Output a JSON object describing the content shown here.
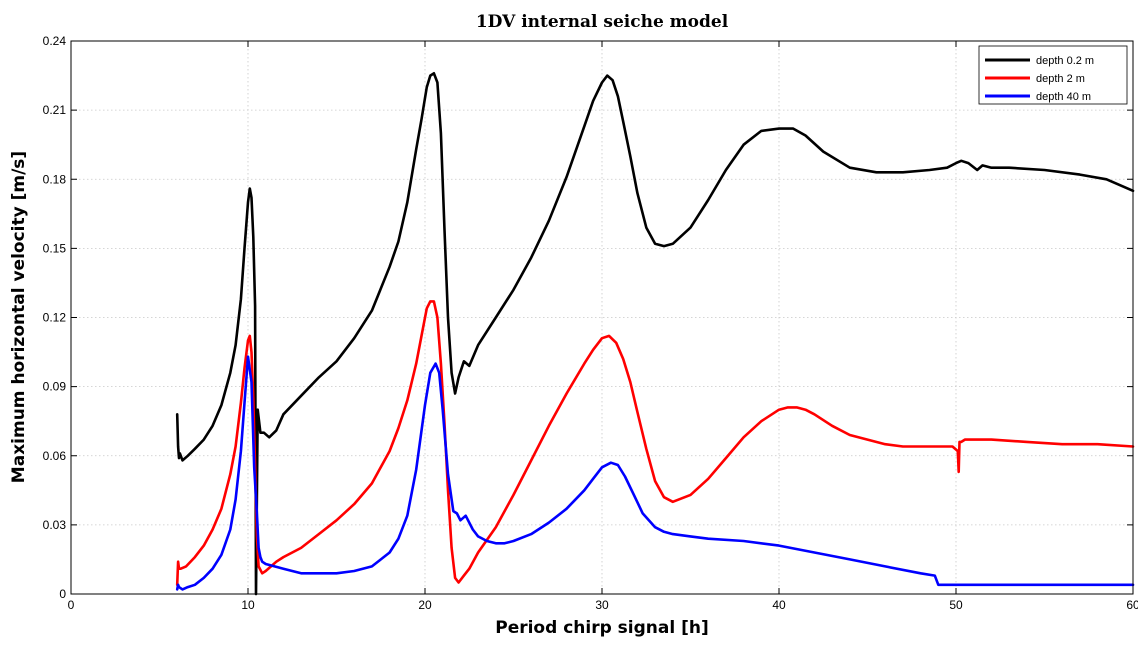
{
  "chart_data": {
    "type": "line",
    "title": "1DV internal seiche model",
    "xlabel": "Period chirp signal [h]",
    "ylabel": "Maximum horizontal velocity [m/s]",
    "xlim": [
      0,
      60
    ],
    "ylim": [
      0,
      0.24
    ],
    "xticks": [
      "0",
      "10",
      "20",
      "30",
      "40",
      "50",
      "60"
    ],
    "yticks": [
      "0",
      "0.03",
      "0.06",
      "0.09",
      "0.12",
      "0.15",
      "0.18",
      "0.21",
      "0.24"
    ],
    "grid": true,
    "legend_position": "top-right",
    "series": [
      {
        "name": "depth 0.2 m",
        "color": "#000000",
        "x": [
          6.0,
          6.05,
          6.1,
          6.15,
          6.3,
          6.6,
          7.0,
          7.5,
          8.0,
          8.5,
          9.0,
          9.3,
          9.6,
          9.8,
          10.0,
          10.1,
          10.2,
          10.3,
          10.4,
          10.45,
          10.55,
          10.7,
          10.9,
          11.2,
          11.6,
          12.0,
          13.0,
          14.0,
          15.0,
          16.0,
          17.0,
          18.0,
          18.5,
          19.0,
          19.5,
          19.8,
          20.1,
          20.3,
          20.5,
          20.7,
          20.9,
          21.1,
          21.3,
          21.5,
          21.7,
          21.9,
          22.2,
          22.5,
          23.0,
          24.0,
          25.0,
          26.0,
          27.0,
          28.0,
          29.0,
          29.5,
          30.0,
          30.3,
          30.6,
          30.9,
          31.2,
          31.6,
          32.0,
          32.5,
          33.0,
          33.5,
          34.0,
          35.0,
          36.0,
          37.0,
          38.0,
          39.0,
          40.0,
          40.8,
          41.5,
          42.5,
          44.0,
          45.5,
          47.0,
          48.5,
          49.5,
          50.0,
          50.3,
          50.7,
          51.2,
          51.5,
          52.0,
          53.0,
          55.0,
          57.0,
          58.5,
          60.0
        ],
        "y": [
          0.078,
          0.064,
          0.059,
          0.061,
          0.058,
          0.06,
          0.063,
          0.067,
          0.073,
          0.082,
          0.096,
          0.108,
          0.128,
          0.15,
          0.17,
          0.176,
          0.172,
          0.155,
          0.125,
          0.0,
          0.08,
          0.07,
          0.07,
          0.068,
          0.071,
          0.078,
          0.086,
          0.094,
          0.101,
          0.111,
          0.123,
          0.142,
          0.153,
          0.17,
          0.193,
          0.206,
          0.22,
          0.225,
          0.226,
          0.222,
          0.2,
          0.158,
          0.12,
          0.096,
          0.087,
          0.094,
          0.101,
          0.099,
          0.108,
          0.12,
          0.132,
          0.146,
          0.162,
          0.181,
          0.203,
          0.214,
          0.222,
          0.225,
          0.223,
          0.216,
          0.205,
          0.19,
          0.174,
          0.159,
          0.152,
          0.151,
          0.152,
          0.159,
          0.171,
          0.184,
          0.195,
          0.201,
          0.202,
          0.202,
          0.199,
          0.192,
          0.185,
          0.183,
          0.183,
          0.184,
          0.185,
          0.187,
          0.188,
          0.187,
          0.184,
          0.186,
          0.185,
          0.185,
          0.184,
          0.182,
          0.18,
          0.175
        ]
      },
      {
        "name": "depth 2 m",
        "color": "#ff0000",
        "x": [
          6.0,
          6.05,
          6.1,
          6.2,
          6.5,
          7.0,
          7.5,
          8.0,
          8.5,
          9.0,
          9.3,
          9.6,
          9.8,
          10.0,
          10.1,
          10.2,
          10.3,
          10.4,
          10.5,
          10.6,
          10.8,
          11.0,
          11.3,
          11.6,
          12.0,
          13.0,
          14.0,
          15.0,
          16.0,
          17.0,
          18.0,
          18.5,
          19.0,
          19.5,
          19.8,
          20.1,
          20.3,
          20.5,
          20.7,
          20.9,
          21.1,
          21.3,
          21.5,
          21.7,
          21.9,
          22.2,
          22.5,
          23.0,
          24.0,
          25.0,
          26.0,
          27.0,
          28.0,
          29.0,
          29.5,
          30.0,
          30.4,
          30.8,
          31.2,
          31.6,
          32.0,
          32.5,
          33.0,
          33.5,
          34.0,
          35.0,
          36.0,
          37.0,
          38.0,
          39.0,
          40.0,
          40.5,
          41.0,
          41.5,
          42.0,
          43.0,
          44.0,
          45.0,
          46.0,
          47.0,
          48.0,
          49.0,
          49.8,
          50.1,
          50.15,
          50.2,
          50.3,
          50.5,
          51.0,
          52.0,
          54.0,
          56.0,
          58.0,
          60.0
        ],
        "y": [
          0.004,
          0.014,
          0.011,
          0.011,
          0.012,
          0.016,
          0.021,
          0.028,
          0.037,
          0.052,
          0.064,
          0.083,
          0.098,
          0.11,
          0.112,
          0.105,
          0.085,
          0.055,
          0.025,
          0.012,
          0.009,
          0.01,
          0.012,
          0.014,
          0.016,
          0.02,
          0.026,
          0.032,
          0.039,
          0.048,
          0.062,
          0.072,
          0.084,
          0.1,
          0.112,
          0.124,
          0.127,
          0.127,
          0.12,
          0.1,
          0.074,
          0.045,
          0.02,
          0.007,
          0.005,
          0.008,
          0.011,
          0.018,
          0.029,
          0.043,
          0.058,
          0.073,
          0.087,
          0.1,
          0.106,
          0.111,
          0.112,
          0.109,
          0.102,
          0.092,
          0.079,
          0.063,
          0.049,
          0.042,
          0.04,
          0.043,
          0.05,
          0.059,
          0.068,
          0.075,
          0.08,
          0.081,
          0.081,
          0.08,
          0.078,
          0.073,
          0.069,
          0.067,
          0.065,
          0.064,
          0.064,
          0.064,
          0.064,
          0.062,
          0.053,
          0.066,
          0.066,
          0.067,
          0.067,
          0.067,
          0.066,
          0.065,
          0.065,
          0.064
        ]
      },
      {
        "name": "depth 40 m",
        "color": "#0000ff",
        "x": [
          6.0,
          6.05,
          6.1,
          6.3,
          6.6,
          7.0,
          7.5,
          8.0,
          8.5,
          9.0,
          9.3,
          9.6,
          9.8,
          10.0,
          10.2,
          10.35,
          10.5,
          10.6,
          10.7,
          10.8,
          11.0,
          11.5,
          12.0,
          13.0,
          14.0,
          15.0,
          16.0,
          17.0,
          18.0,
          18.5,
          19.0,
          19.5,
          20.0,
          20.3,
          20.6,
          20.8,
          21.0,
          21.3,
          21.6,
          21.8,
          22.0,
          22.3,
          22.7,
          23.0,
          23.5,
          24.0,
          24.5,
          25.0,
          26.0,
          27.0,
          28.0,
          29.0,
          29.5,
          30.0,
          30.5,
          30.9,
          31.3,
          31.8,
          32.3,
          33.0,
          33.5,
          34.0,
          35.0,
          36.0,
          38.0,
          40.0,
          42.0,
          44.0,
          46.0,
          48.0,
          48.8,
          49.0,
          50.0,
          52.0,
          54.0,
          56.0,
          58.0,
          60.0
        ],
        "y": [
          0.002,
          0.004,
          0.003,
          0.002,
          0.003,
          0.004,
          0.007,
          0.011,
          0.017,
          0.028,
          0.041,
          0.062,
          0.083,
          0.103,
          0.092,
          0.055,
          0.035,
          0.02,
          0.016,
          0.014,
          0.013,
          0.012,
          0.011,
          0.009,
          0.009,
          0.009,
          0.01,
          0.012,
          0.018,
          0.024,
          0.034,
          0.054,
          0.082,
          0.096,
          0.1,
          0.096,
          0.08,
          0.052,
          0.036,
          0.035,
          0.032,
          0.034,
          0.028,
          0.025,
          0.023,
          0.022,
          0.022,
          0.023,
          0.026,
          0.031,
          0.037,
          0.045,
          0.05,
          0.055,
          0.057,
          0.056,
          0.051,
          0.043,
          0.035,
          0.029,
          0.027,
          0.026,
          0.025,
          0.024,
          0.023,
          0.021,
          0.018,
          0.015,
          0.012,
          0.009,
          0.008,
          0.004,
          0.004,
          0.004,
          0.004,
          0.004,
          0.004,
          0.004
        ]
      }
    ]
  }
}
